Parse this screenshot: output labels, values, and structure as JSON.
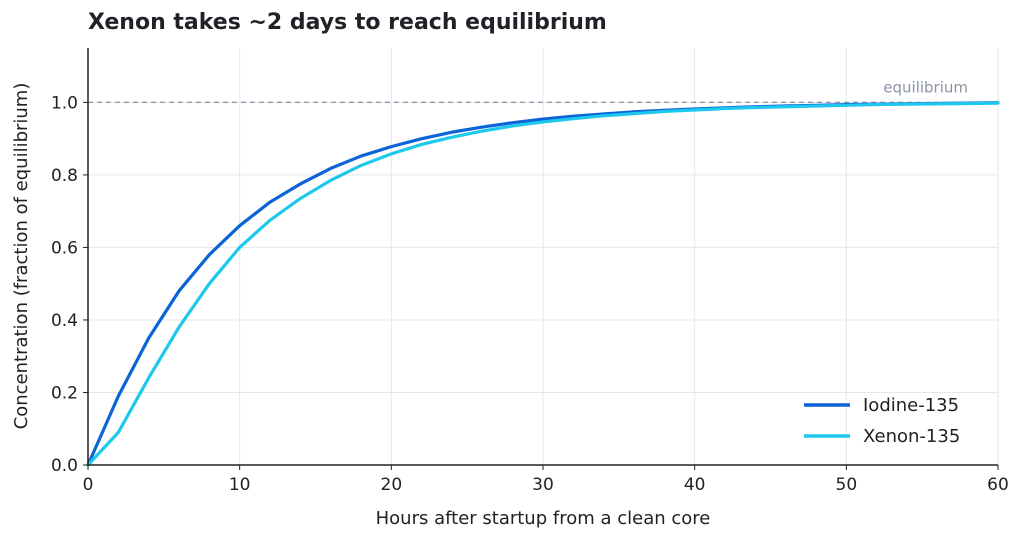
{
  "chart_data": {
    "type": "line",
    "title": "Xenon takes ~2 days to reach equilibrium",
    "xlabel": "Hours after startup from a clean core",
    "ylabel": "Concentration (fraction of equilibrium)",
    "xlim": [
      0,
      60
    ],
    "ylim": [
      0,
      1.15
    ],
    "x_ticks": [
      0,
      10,
      20,
      30,
      40,
      50,
      60
    ],
    "x_tick_labels": [
      "0",
      "10",
      "20",
      "30",
      "40",
      "50",
      "60"
    ],
    "y_ticks": [
      0,
      0.2,
      0.4,
      0.6,
      0.8,
      1.0
    ],
    "y_tick_labels": [
      "0.0",
      "0.2",
      "0.4",
      "0.6",
      "0.8",
      "1.0"
    ],
    "grid": true,
    "legend_position": "bottom-right",
    "reference_line": {
      "y": 1.0,
      "label": "equilibrium",
      "color": "#8a94a6"
    },
    "x": [
      0,
      2,
      4,
      6,
      8,
      10,
      12,
      14,
      16,
      18,
      20,
      22,
      24,
      26,
      28,
      30,
      32,
      34,
      36,
      38,
      40,
      42,
      44,
      46,
      48,
      50,
      52,
      54,
      56,
      58,
      60
    ],
    "series": [
      {
        "name": "Iodine-135",
        "color": "#0b63d8",
        "values": [
          0.0,
          0.19,
          0.35,
          0.48,
          0.58,
          0.66,
          0.725,
          0.775,
          0.818,
          0.852,
          0.878,
          0.9,
          0.918,
          0.932,
          0.944,
          0.954,
          0.962,
          0.968,
          0.974,
          0.978,
          0.982,
          0.985,
          0.988,
          0.99,
          0.992,
          0.994,
          0.995,
          0.996,
          0.997,
          0.998,
          0.999
        ]
      },
      {
        "name": "Xenon-135",
        "color": "#1ec8ec",
        "values": [
          0.0,
          0.09,
          0.24,
          0.38,
          0.5,
          0.6,
          0.675,
          0.735,
          0.785,
          0.826,
          0.858,
          0.884,
          0.904,
          0.921,
          0.935,
          0.946,
          0.955,
          0.963,
          0.969,
          0.975,
          0.979,
          0.983,
          0.986,
          0.988,
          0.99,
          0.992,
          0.994,
          0.995,
          0.996,
          0.997,
          0.998
        ]
      }
    ]
  }
}
